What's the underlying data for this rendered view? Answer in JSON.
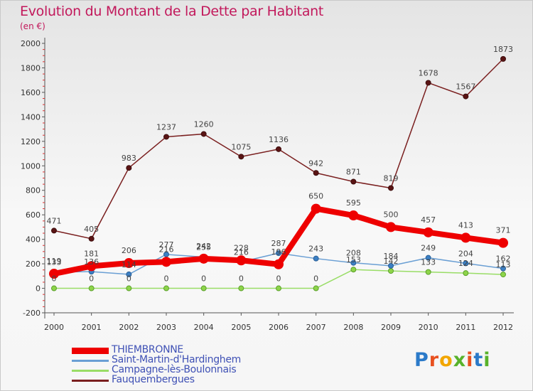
{
  "header": {
    "title": "Evolution du Montant de la Dette par Habitant",
    "subtitle": "(en €)"
  },
  "logo": {
    "text": "Proxiti"
  },
  "colors": {
    "title": "#c2185b",
    "legend_text": "#3f51b5",
    "axis_text": "#333333"
  },
  "chart_data": {
    "type": "line",
    "title": "Evolution du Montant de la Dette par Habitant",
    "subtitle": "(en €)",
    "xlabel": "",
    "ylabel": "",
    "categories": [
      "2000",
      "2001",
      "2002",
      "2003",
      "2004",
      "2005",
      "2006",
      "2007",
      "2008",
      "2009",
      "2010",
      "2011",
      "2012"
    ],
    "ylim": [
      -200,
      2000
    ],
    "yticks": [
      -200,
      0,
      200,
      400,
      600,
      800,
      1000,
      1200,
      1400,
      1600,
      1800,
      2000
    ],
    "grid": false,
    "legend_position": "bottom-left",
    "series": [
      {
        "name": "THIEMBRONNE",
        "color": "#ee0000",
        "values": [
          119,
          181,
          206,
          216,
          242,
          228,
          196,
          650,
          595,
          500,
          457,
          413,
          371
        ],
        "labels": [
          "119",
          "181",
          "206",
          "216",
          "242",
          "228",
          "196",
          "650",
          "595",
          "500",
          "457",
          "413",
          "371"
        ]
      },
      {
        "name": "Saint-Martin-d'Hardinghem",
        "color": "#6a9fd4",
        "values": [
          133,
          136,
          114,
          277,
          255,
          216,
          287,
          243,
          208,
          184,
          249,
          204,
          162
        ],
        "labels": [
          "133",
          "136",
          "114",
          "277",
          "255",
          "216",
          "287",
          "243",
          "208",
          "184",
          "249",
          "204",
          "162"
        ]
      },
      {
        "name": "Campagne-lès-Boulonnais",
        "color": "#99dd66",
        "values": [
          0,
          0,
          0,
          0,
          0,
          0,
          0,
          0,
          153,
          142,
          133,
          124,
          113
        ],
        "labels": [
          "0",
          "0",
          "0",
          "0",
          "0",
          "0",
          "0",
          "0",
          "153",
          "142",
          "133",
          "124",
          "113"
        ]
      },
      {
        "name": "Fauquembergues",
        "color": "#7a1f1f",
        "values": [
          471,
          405,
          983,
          1237,
          1260,
          1075,
          1136,
          942,
          871,
          819,
          1678,
          1567,
          1873
        ],
        "labels": [
          "471",
          "405",
          "983",
          "1237",
          "1260",
          "1075",
          "1136",
          "942",
          "871",
          "819",
          "1678",
          "1567",
          "1873"
        ]
      }
    ]
  }
}
